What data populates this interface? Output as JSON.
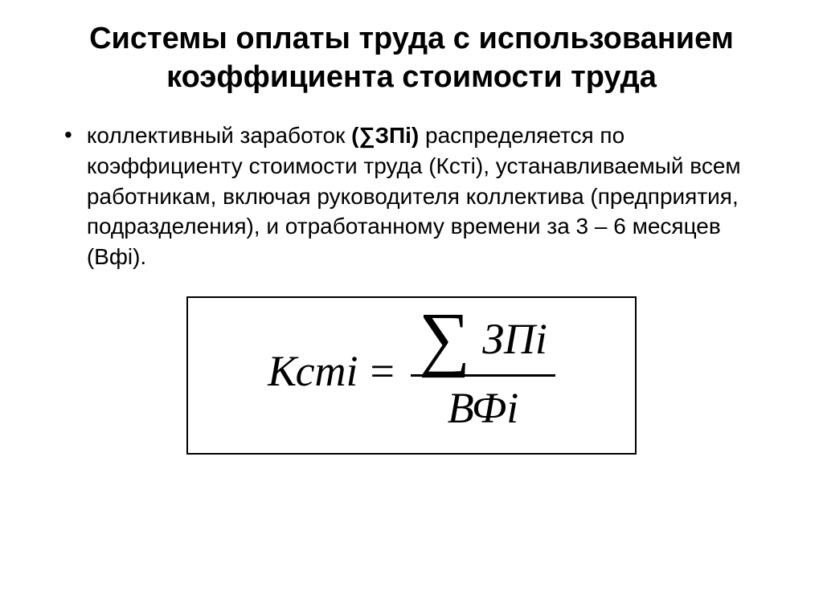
{
  "title": "Системы оплаты труда с использованием коэффициента стоимости труда",
  "bullet": "•",
  "paragraph": {
    "p1": "коллективный заработок ",
    "bold1": "(∑ЗПi)",
    "p2": " распределяется по коэффициенту стоимости труда (Кстi), устанавливаемый всем работникам, включая руководителя коллектива (предприятия, подразделения), и отработанному времени за 3 – 6 месяцев (Вфi)."
  },
  "formula": {
    "lhs": "Кстi",
    "eq": "=",
    "sigma": "∑",
    "numerator": "ЗПi",
    "denominator": "ВФi"
  },
  "style": {
    "background": "#ffffff",
    "text_color": "#000000",
    "title_fontsize": 38,
    "body_fontsize": 28,
    "formula_fontsize": 54,
    "sigma_fontsize": 90,
    "border_color": "#000000",
    "border_width": 2
  }
}
